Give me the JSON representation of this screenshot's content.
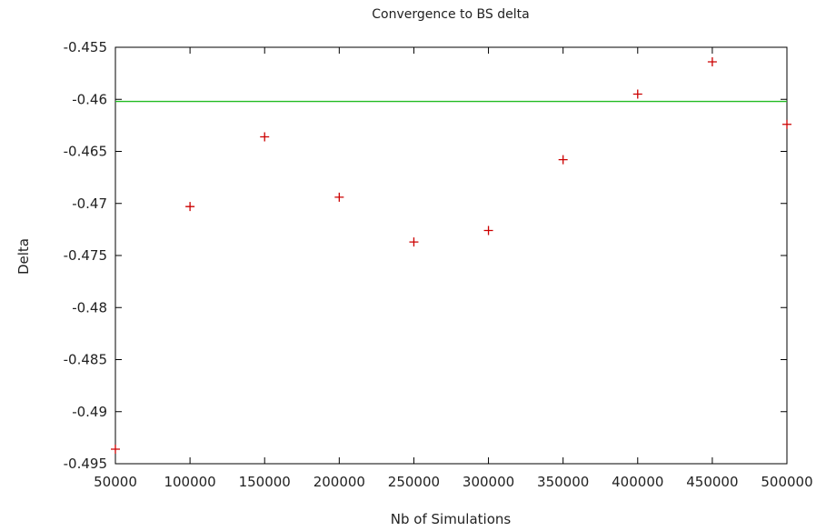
{
  "chart_data": {
    "type": "scatter",
    "title": "Convergence to BS delta",
    "xlabel": "Nb of Simulations",
    "ylabel": "Delta",
    "xlim": [
      50000,
      500000
    ],
    "ylim": [
      -0.495,
      -0.455
    ],
    "xticks": [
      50000,
      100000,
      150000,
      200000,
      250000,
      300000,
      350000,
      400000,
      450000,
      500000
    ],
    "xtick_labels": [
      "50000",
      "100000",
      "150000",
      "200000",
      "250000",
      "300000",
      "350000",
      "400000",
      "450000",
      "500000"
    ],
    "yticks": [
      -0.455,
      -0.46,
      -0.465,
      -0.47,
      -0.475,
      -0.48,
      -0.485,
      -0.49,
      -0.495
    ],
    "ytick_labels": [
      "-0.455",
      "-0.46",
      "-0.465",
      "-0.47",
      "-0.475",
      "-0.48",
      "-0.485",
      "-0.49",
      "-0.495"
    ],
    "grid": false,
    "series": [
      {
        "marker": "plus",
        "color": "#cc0000",
        "x": [
          50000,
          100000,
          150000,
          200000,
          250000,
          300000,
          350000,
          400000,
          450000,
          500000
        ],
        "y": [
          -0.4936,
          -0.4703,
          -0.4636,
          -0.4694,
          -0.4737,
          -0.4726,
          -0.4658,
          -0.4595,
          -0.4564,
          -0.4624
        ]
      }
    ],
    "reference_lines": [
      {
        "axis": "y",
        "value": -0.4602,
        "color": "#22bb22"
      }
    ]
  }
}
